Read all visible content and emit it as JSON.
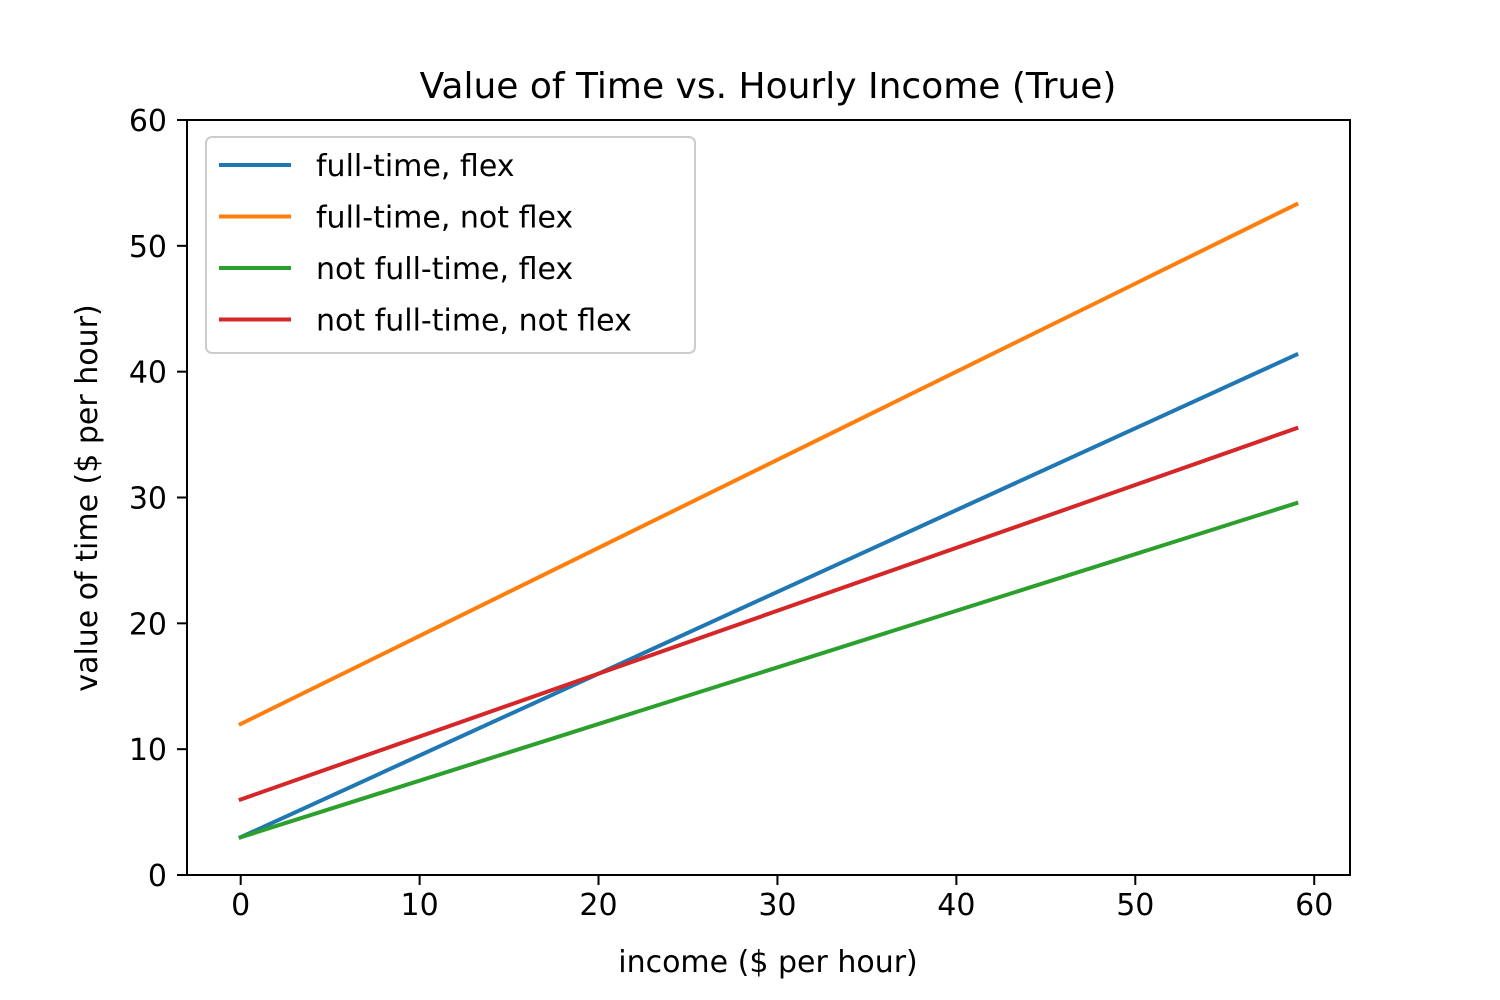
{
  "chart_data": {
    "type": "line",
    "title": "Value of Time vs. Hourly Income (True)",
    "xlabel": "income ($ per hour)",
    "ylabel": "value of time ($ per hour)",
    "xlim": [
      -3,
      62
    ],
    "ylim": [
      0,
      60
    ],
    "x_ticks": [
      0,
      10,
      20,
      30,
      40,
      50,
      60
    ],
    "y_ticks": [
      0,
      10,
      20,
      30,
      40,
      50,
      60
    ],
    "x_tick_labels": [
      "0",
      "10",
      "20",
      "30",
      "40",
      "50",
      "60"
    ],
    "y_tick_labels": [
      "0",
      "10",
      "20",
      "30",
      "40",
      "50",
      "60"
    ],
    "grid": false,
    "legend_position": "upper-left",
    "series": [
      {
        "name": "full-time, flex",
        "color": "#1f77b4",
        "x": [
          0,
          59
        ],
        "y": [
          3,
          41.35
        ]
      },
      {
        "name": "full-time, not flex",
        "color": "#ff7f0e",
        "x": [
          0,
          59
        ],
        "y": [
          12,
          53.3
        ]
      },
      {
        "name": "not full-time, flex",
        "color": "#2ca02c",
        "x": [
          0,
          59
        ],
        "y": [
          3,
          29.55
        ]
      },
      {
        "name": "not full-time, not flex",
        "color": "#d62728",
        "x": [
          0,
          59
        ],
        "y": [
          6,
          35.5
        ]
      }
    ]
  }
}
